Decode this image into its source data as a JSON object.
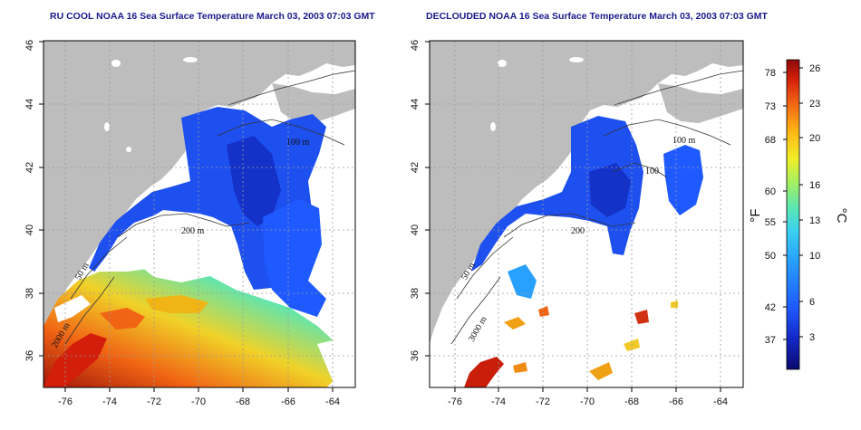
{
  "left_panel": {
    "title": "RU COOL NOAA 16 Sea Surface Temperature March 03, 2003 07:03 GMT",
    "contour_labels": [
      "100 m",
      "200 m",
      "50 m",
      "2000 m"
    ]
  },
  "right_panel": {
    "title": "DECLOUDED NOAA 16 Sea Surface Temperature March 03, 2003 07:03 GMT",
    "contour_labels": [
      "100 m",
      "100",
      "200",
      "50 m",
      "3000 m"
    ]
  },
  "axes": {
    "lon_ticks": [
      "-76",
      "-74",
      "-72",
      "-70",
      "-68",
      "-66",
      "-64"
    ],
    "lat_ticks": [
      "36",
      "38",
      "40",
      "42",
      "44",
      "46"
    ],
    "lon_range": [
      -77,
      -63
    ],
    "lat_range": [
      35,
      46
    ]
  },
  "colorbar": {
    "fahrenheit_label": "°F",
    "celsius_label": "°C",
    "fahrenheit_ticks": [
      "78",
      "73",
      "68",
      "60",
      "55",
      "50",
      "42",
      "37"
    ],
    "celsius_ticks": [
      "26",
      "23",
      "20",
      "16",
      "13",
      "10",
      "6",
      "3"
    ],
    "colors": [
      "#0a0a6e",
      "#1428c8",
      "#1e5aff",
      "#28a0ff",
      "#3cd2f0",
      "#5ae6b4",
      "#a0f064",
      "#f0f028",
      "#ffb414",
      "#f06414",
      "#d21e0a",
      "#8c0a0a"
    ]
  },
  "map_colors": {
    "land": "#bdbdbd",
    "sea_unknown": "#ffffff",
    "frame": "#000000"
  }
}
